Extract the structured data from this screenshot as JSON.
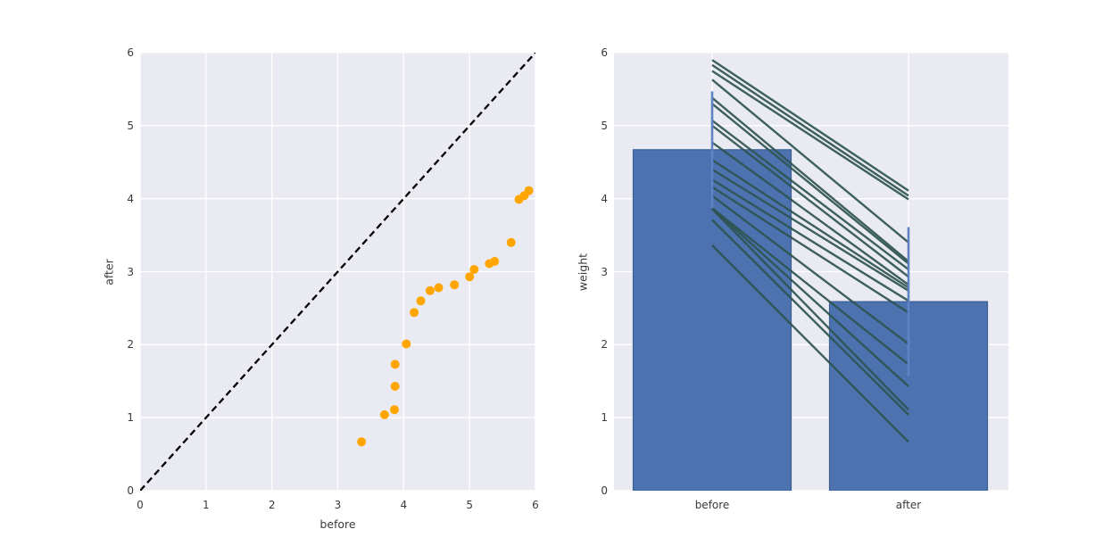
{
  "chart_data": [
    {
      "type": "scatter",
      "title": "",
      "xlabel": "before",
      "ylabel": "after",
      "xlim": [
        0,
        6
      ],
      "ylim": [
        0,
        6
      ],
      "xticks": [
        "0",
        "1",
        "2",
        "3",
        "4",
        "5",
        "6"
      ],
      "yticks": [
        "0",
        "1",
        "2",
        "3",
        "4",
        "5",
        "6"
      ],
      "grid": "on",
      "background_color": "#eaeaf2",
      "grid_color": "#ffffff",
      "point_color": "#ffa500",
      "identity_line": {
        "from": [
          0,
          0
        ],
        "to": [
          6,
          6
        ],
        "style": "dashed",
        "color": "#000000"
      },
      "points": [
        [
          3.36,
          0.67
        ],
        [
          3.71,
          1.04
        ],
        [
          3.86,
          1.11
        ],
        [
          3.87,
          1.43
        ],
        [
          3.87,
          1.73
        ],
        [
          4.04,
          2.01
        ],
        [
          4.16,
          2.44
        ],
        [
          4.26,
          2.6
        ],
        [
          4.4,
          2.74
        ],
        [
          4.53,
          2.78
        ],
        [
          4.77,
          2.82
        ],
        [
          5.0,
          2.93
        ],
        [
          5.07,
          3.03
        ],
        [
          5.3,
          3.11
        ],
        [
          5.38,
          3.14
        ],
        [
          5.63,
          3.4
        ],
        [
          5.75,
          3.99
        ],
        [
          5.83,
          4.04
        ],
        [
          5.9,
          4.11
        ]
      ]
    },
    {
      "type": "bar",
      "title": "",
      "xlabel": "",
      "ylabel": "weight",
      "categories": [
        "before",
        "after"
      ],
      "values": [
        4.67,
        2.59
      ],
      "error_sd": [
        0.8,
        1.02
      ],
      "ylim": [
        0,
        6
      ],
      "yticks": [
        "0",
        "1",
        "2",
        "3",
        "4",
        "5",
        "6"
      ],
      "grid": "on",
      "background_color": "#eaeaf2",
      "grid_color": "#ffffff",
      "bar_color": "#4c72b0",
      "bar_edge_color": "#3a6096",
      "error_bar_color": "#5f83c5",
      "pair_line_color": "#2f5450",
      "paired_lines": [
        [
          3.36,
          0.67
        ],
        [
          3.71,
          1.04
        ],
        [
          3.86,
          1.11
        ],
        [
          3.87,
          1.43
        ],
        [
          3.87,
          1.73
        ],
        [
          4.04,
          2.01
        ],
        [
          4.16,
          2.44
        ],
        [
          4.26,
          2.6
        ],
        [
          4.4,
          2.74
        ],
        [
          4.53,
          2.78
        ],
        [
          4.77,
          2.82
        ],
        [
          5.0,
          2.93
        ],
        [
          5.07,
          3.03
        ],
        [
          5.3,
          3.11
        ],
        [
          5.38,
          3.14
        ],
        [
          5.63,
          3.4
        ],
        [
          5.75,
          3.99
        ],
        [
          5.83,
          4.04
        ],
        [
          5.9,
          4.11
        ]
      ]
    }
  ]
}
